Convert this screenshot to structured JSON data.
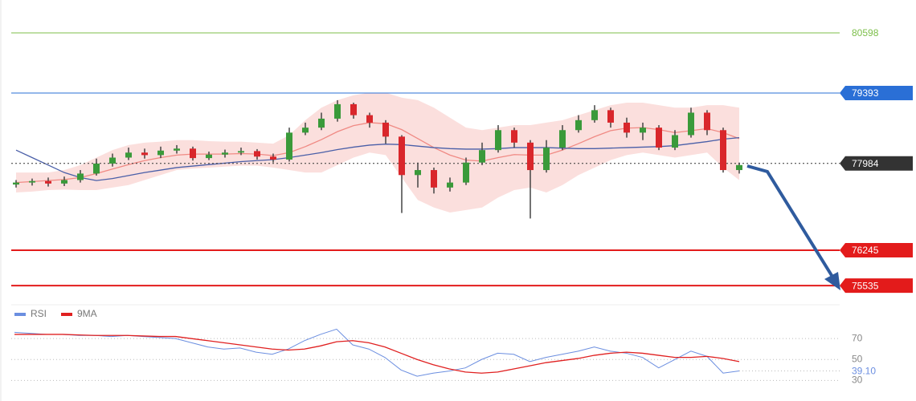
{
  "chart_data": [
    {
      "type": "candlestick",
      "ylim": [
        75232,
        81257
      ],
      "up_color": "#3a9a3a",
      "down_color": "#d9262b",
      "open": [
        77560,
        77600,
        77630,
        77580,
        77650,
        77780,
        77980,
        78100,
        78200,
        78150,
        78240,
        78280,
        78090,
        78160,
        78200,
        78230,
        78120,
        78060,
        78600,
        78700,
        78880,
        79170,
        78950,
        78800,
        78520,
        77750,
        77850,
        77500,
        77600,
        78000,
        78250,
        78650,
        78400,
        77850,
        78300,
        78650,
        78850,
        79050,
        78800,
        78600,
        78700,
        78300,
        78550,
        79000,
        78650,
        77850
      ],
      "close": [
        77600,
        77630,
        77580,
        77650,
        77780,
        77980,
        78100,
        78200,
        78150,
        78240,
        78280,
        78090,
        78160,
        78200,
        78230,
        78120,
        78060,
        78600,
        78700,
        78880,
        79170,
        78950,
        78800,
        78520,
        77750,
        77850,
        77500,
        77600,
        78000,
        78250,
        78650,
        78400,
        77850,
        78300,
        78650,
        78850,
        79050,
        78800,
        78600,
        78700,
        78300,
        78550,
        79000,
        78650,
        77850,
        77950
      ],
      "high": [
        77650,
        77680,
        77700,
        77720,
        77850,
        78080,
        78180,
        78300,
        78280,
        78320,
        78350,
        78320,
        78220,
        78260,
        78300,
        78270,
        78180,
        78700,
        78800,
        79000,
        79250,
        79200,
        79000,
        78850,
        78550,
        78000,
        77900,
        77700,
        78100,
        78400,
        78750,
        78700,
        78450,
        78450,
        78750,
        78950,
        79150,
        79100,
        78900,
        78800,
        78750,
        78650,
        79100,
        79050,
        78700,
        78000
      ],
      "low": [
        77500,
        77540,
        77520,
        77530,
        77600,
        77740,
        77920,
        78050,
        78080,
        78090,
        78180,
        78040,
        78050,
        78100,
        78150,
        78060,
        78000,
        78020,
        78550,
        78650,
        78820,
        78880,
        78700,
        78380,
        76990,
        77500,
        77380,
        77420,
        77550,
        77950,
        78200,
        78300,
        76880,
        77800,
        78250,
        78600,
        78800,
        78700,
        78500,
        78450,
        78250,
        78250,
        78500,
        78550,
        77800,
        77780
      ],
      "band": {
        "color": "#f8c9c6",
        "upper": [
          77800,
          77800,
          77800,
          77850,
          77950,
          78100,
          78250,
          78350,
          78400,
          78420,
          78450,
          78450,
          78430,
          78420,
          78420,
          78400,
          78380,
          78550,
          78850,
          79100,
          79250,
          79350,
          79400,
          79400,
          79300,
          79250,
          79100,
          78900,
          78700,
          78650,
          78700,
          78750,
          78750,
          78800,
          78850,
          78950,
          79050,
          79150,
          79200,
          79200,
          79150,
          79100,
          79100,
          79150,
          79150,
          79100
        ],
        "lower": [
          77400,
          77420,
          77450,
          77460,
          77450,
          77450,
          77500,
          77550,
          77650,
          77750,
          77850,
          77880,
          77900,
          77920,
          77940,
          77940,
          77900,
          77850,
          77800,
          77800,
          77950,
          78100,
          78200,
          78150,
          77700,
          77250,
          77100,
          77000,
          77050,
          77100,
          77300,
          77450,
          77500,
          77400,
          77550,
          77750,
          77900,
          78050,
          78150,
          78200,
          78150,
          78100,
          78150,
          78200,
          77900,
          77650
        ]
      },
      "lines": [
        {
          "color": "#f08a84",
          "values": [
            77600,
            77620,
            77640,
            77660,
            77700,
            77780,
            77870,
            77960,
            78040,
            78100,
            78150,
            78170,
            78170,
            78170,
            78180,
            78170,
            78140,
            78200,
            78320,
            78460,
            78620,
            78740,
            78800,
            78780,
            78660,
            78480,
            78300,
            78150,
            78050,
            78030,
            78100,
            78160,
            78150,
            78150,
            78250,
            78380,
            78520,
            78640,
            78690,
            78700,
            78660,
            78600,
            78640,
            78680,
            78600,
            78480
          ]
        },
        {
          "color": "#4a5fa8",
          "values": [
            78250,
            78100,
            77950,
            77800,
            77700,
            77640,
            77680,
            77740,
            77800,
            77850,
            77900,
            77930,
            77960,
            77990,
            78020,
            78040,
            78060,
            78100,
            78150,
            78200,
            78260,
            78310,
            78350,
            78370,
            78360,
            78330,
            78300,
            78280,
            78270,
            78270,
            78280,
            78300,
            78300,
            78300,
            78290,
            78280,
            78280,
            78290,
            78300,
            78310,
            78320,
            78340,
            78380,
            78420,
            78470,
            78500
          ]
        }
      ],
      "levels": [
        {
          "value": 80598,
          "color": "#7cbf4a",
          "badge": false,
          "dotted": false
        },
        {
          "value": 79393,
          "color": "#2a6fd6",
          "badge": true,
          "dotted": false
        },
        {
          "value": 77984,
          "color": "#333333",
          "badge": true,
          "dotted": true
        },
        {
          "value": 76245,
          "color": "#e31b1b",
          "badge": true,
          "dotted": false
        },
        {
          "value": 75535,
          "color": "#e31b1b",
          "badge": true,
          "dotted": false
        }
      ]
    },
    {
      "type": "line",
      "ylim": [
        18,
        87
      ],
      "yticks": [
        30,
        50,
        70
      ],
      "series": [
        {
          "name": "RSI",
          "color": "#6b8ee0",
          "values": [
            76,
            75,
            74,
            74,
            73,
            73,
            72,
            73,
            72,
            71,
            70,
            66,
            62,
            60,
            61,
            57,
            55,
            60,
            68,
            74,
            79,
            64,
            60,
            52,
            40,
            34,
            37,
            39,
            42,
            50,
            56,
            55,
            48,
            52,
            55,
            58,
            62,
            58,
            56,
            52,
            42,
            50,
            58,
            53,
            37,
            39.1
          ],
          "value_labels": [
            null,
            null,
            null,
            null,
            null,
            null,
            null,
            null,
            null,
            null,
            null,
            null,
            null,
            null,
            null,
            null,
            null,
            null,
            null,
            null,
            null,
            null,
            null,
            null,
            null,
            null,
            null,
            null,
            null,
            null,
            null,
            null,
            null,
            null,
            null,
            null,
            null,
            null,
            null,
            null,
            null,
            null,
            null,
            null,
            null,
            "39.10"
          ]
        },
        {
          "name": "9MA",
          "color": "#e02020",
          "values": [
            74,
            74,
            74,
            74,
            73.5,
            73,
            73,
            73,
            72.5,
            72,
            72,
            70,
            68,
            66,
            64,
            62,
            60,
            59,
            60,
            63,
            67,
            68,
            66,
            62,
            56,
            50,
            45,
            41,
            38,
            37,
            38,
            41,
            44,
            47,
            49,
            51,
            54,
            56,
            57,
            56,
            54,
            52,
            52,
            53,
            51,
            48
          ]
        }
      ]
    }
  ]
}
